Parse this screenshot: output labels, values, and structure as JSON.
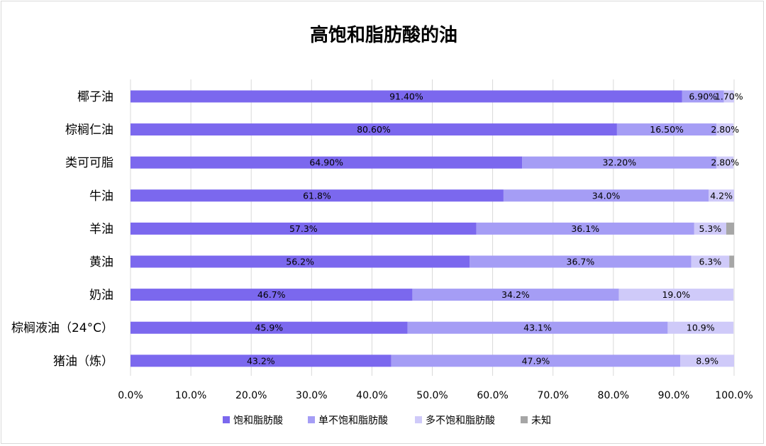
{
  "chart_data": {
    "type": "bar",
    "orientation": "horizontal",
    "stacked": true,
    "title": "高饱和脂肪酸的油",
    "categories": [
      "椰子油",
      "棕榈仁油",
      "类可可脂",
      "牛油",
      "羊油",
      "黄油",
      "奶油",
      "棕榈液油（24°C）",
      "猪油（炼）"
    ],
    "series": [
      {
        "name": "饱和脂肪酸",
        "color": "#7b68ee",
        "values": [
          91.4,
          80.6,
          64.9,
          61.8,
          57.3,
          56.2,
          46.7,
          45.9,
          43.2
        ],
        "labels": [
          "91.40%",
          "80.60%",
          "64.90%",
          "61.8%",
          "57.3%",
          "56.2%",
          "46.7%",
          "45.9%",
          "43.2%"
        ]
      },
      {
        "name": "单不饱和脂肪酸",
        "color": "#a59df5",
        "values": [
          6.9,
          16.5,
          32.2,
          34.0,
          36.1,
          36.7,
          34.2,
          43.1,
          47.9
        ],
        "labels": [
          "6.90%",
          "16.50%",
          "32.20%",
          "34.0%",
          "36.1%",
          "36.7%",
          "34.2%",
          "43.1%",
          "47.9%"
        ]
      },
      {
        "name": "多不饱和脂肪酸",
        "color": "#cfcaf9",
        "values": [
          1.7,
          2.8,
          2.8,
          4.2,
          5.3,
          6.3,
          19.0,
          10.9,
          8.9
        ],
        "labels": [
          "1.70%",
          "2.80%",
          "2.80%",
          "4.2%",
          "5.3%",
          "6.3%",
          "19.0%",
          "10.9%",
          "8.9%"
        ]
      },
      {
        "name": "未知",
        "color": "#a6a6a6",
        "values": [
          0,
          0,
          0,
          0,
          1.3,
          0.8,
          0,
          0,
          0
        ],
        "labels": [
          "",
          "",
          "",
          "",
          "",
          "",
          "",
          "",
          ""
        ]
      }
    ],
    "xlim": [
      0,
      100
    ],
    "x_ticks": [
      "0.0%",
      "10.0%",
      "20.0%",
      "30.0%",
      "40.0%",
      "50.0%",
      "60.0%",
      "70.0%",
      "80.0%",
      "90.0%",
      "100.0%"
    ],
    "grid": "vertical",
    "legend_position": "bottom"
  }
}
